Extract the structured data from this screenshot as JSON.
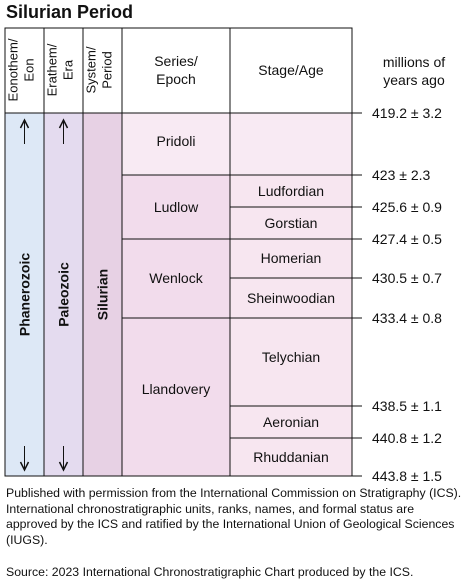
{
  "title": "Silurian Period",
  "headers": {
    "eonothem": "Eonothem/\nEon",
    "erathem": "Erathem/\nEra",
    "system": "System/\nPeriod",
    "series": "Series/\nEpoch",
    "stage": "Stage/Age",
    "mya": "millions of\nyears ago"
  },
  "eon": "Phanerozoic",
  "era": "Paleozoic",
  "period": "Silurian",
  "series": [
    "Pridoli",
    "Ludlow",
    "Wenlock",
    "Llandovery"
  ],
  "stages": [
    "Ludfordian",
    "Gorstian",
    "Homerian",
    "Sheinwoodian",
    "Telychian",
    "Aeronian",
    "Rhuddanian"
  ],
  "ages": [
    "419.2 ± 3.2",
    "423 ± 2.3",
    "425.6 ± 0.9",
    "427.4 ± 0.5",
    "430.5 ± 0.7",
    "433.4 ± 0.8",
    "438.5 ± 1.1",
    "440.8 ± 1.2",
    "443.8 ± 1.5"
  ],
  "caption": "Published with permission from the International Commission on Stratigraphy (ICS). International chronostratigraphic units, ranks, names, and formal status are approved by the ICS and ratified by the International Union of Geological Sciences (IUGS).",
  "source": "Source: 2023 International Chronostratigraphic Chart produced by the ICS.",
  "colors": {
    "eon": "#dde8f6",
    "era": "#e4dbef",
    "period": "#e7d1e4",
    "series_dark": "#f2dcec",
    "series_light": "#f8eaf3",
    "stage": "#f7e6f0",
    "line": "#111111"
  },
  "icons": [
    "arrow-up-icon",
    "arrow-down-icon"
  ]
}
